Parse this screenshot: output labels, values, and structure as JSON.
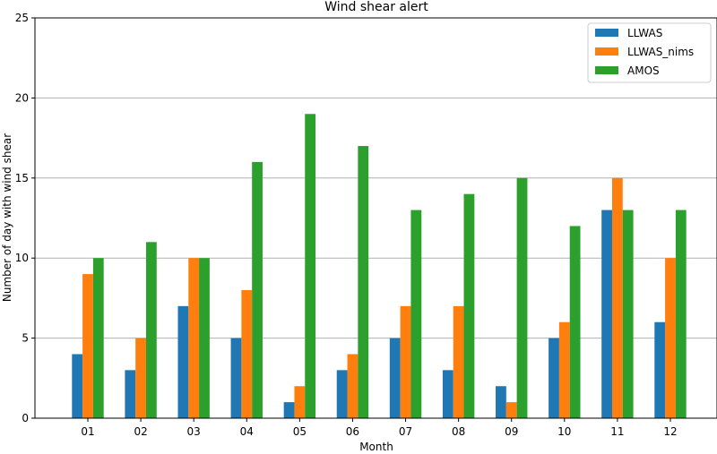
{
  "chart_data": {
    "type": "bar",
    "title": "Wind shear alert",
    "xlabel": "Month",
    "ylabel": "Number of day with wind shear",
    "categories": [
      "01",
      "02",
      "03",
      "04",
      "05",
      "06",
      "07",
      "08",
      "09",
      "10",
      "11",
      "12"
    ],
    "series": [
      {
        "name": "LLWAS",
        "color": "#1f77b4",
        "values": [
          4,
          3,
          7,
          5,
          1,
          3,
          5,
          3,
          2,
          5,
          13,
          6
        ]
      },
      {
        "name": "LLWAS_nims",
        "color": "#ff7f0e",
        "values": [
          9,
          5,
          10,
          8,
          2,
          4,
          7,
          7,
          1,
          6,
          15,
          10
        ]
      },
      {
        "name": "AMOS",
        "color": "#2ca02c",
        "values": [
          10,
          11,
          10,
          16,
          19,
          17,
          13,
          14,
          15,
          12,
          13,
          13
        ]
      }
    ],
    "ylim": [
      0,
      25
    ],
    "yticks": [
      0,
      5,
      10,
      15,
      20,
      25
    ],
    "grid": "y",
    "legend": "top-right"
  }
}
